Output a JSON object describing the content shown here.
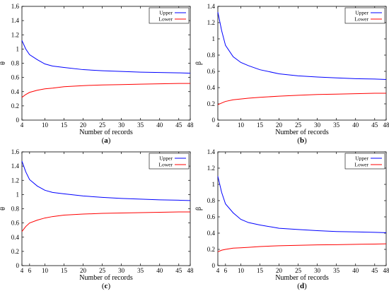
{
  "chart_data": [
    {
      "type": "line",
      "caption": "(a)",
      "xlabel": "Number of records",
      "ylabel": "θ",
      "xlim": [
        4,
        48
      ],
      "ylim": [
        0,
        1.6
      ],
      "xticks": [
        4,
        10,
        15,
        20,
        25,
        30,
        35,
        40,
        45,
        48
      ],
      "yticks": [
        0,
        0.2,
        0.4,
        0.6,
        0.8,
        1,
        1.2,
        1.4,
        1.6
      ],
      "ytick_labels": [
        "0",
        "0.2",
        "0.4",
        "0.6",
        "0.8",
        "1",
        "1.2",
        "1.4",
        "1.6"
      ],
      "legend": "top-right",
      "series": [
        {
          "name": "Upper",
          "color": "#0000ff",
          "x": [
            4,
            5,
            6,
            8,
            10,
            12,
            15,
            20,
            25,
            30,
            35,
            40,
            45,
            48
          ],
          "y": [
            1.12,
            1.0,
            0.92,
            0.85,
            0.79,
            0.76,
            0.74,
            0.71,
            0.695,
            0.685,
            0.675,
            0.67,
            0.665,
            0.66
          ]
        },
        {
          "name": "Lower",
          "color": "#ff0000",
          "x": [
            4,
            5,
            6,
            8,
            10,
            12,
            15,
            20,
            25,
            30,
            35,
            40,
            45,
            48
          ],
          "y": [
            0.32,
            0.36,
            0.39,
            0.42,
            0.44,
            0.45,
            0.47,
            0.485,
            0.495,
            0.5,
            0.505,
            0.51,
            0.515,
            0.515
          ]
        }
      ]
    },
    {
      "type": "line",
      "caption": "(b)",
      "xlabel": "Number of records",
      "ylabel": "β",
      "xlim": [
        4,
        48
      ],
      "ylim": [
        0,
        1.4
      ],
      "xticks": [
        4,
        10,
        15,
        20,
        25,
        30,
        35,
        40,
        45,
        48
      ],
      "yticks": [
        0,
        0.2,
        0.4,
        0.6,
        0.8,
        1,
        1.2,
        1.4
      ],
      "ytick_labels": [
        "0",
        "0.2",
        "0.4",
        "0.6",
        "0.8",
        "1",
        "1.2",
        "1.4"
      ],
      "legend": "top-right",
      "series": [
        {
          "name": "Upper",
          "color": "#0000ff",
          "x": [
            4,
            5,
            6,
            8,
            10,
            12,
            15,
            20,
            25,
            30,
            35,
            40,
            45,
            48
          ],
          "y": [
            1.33,
            1.1,
            0.92,
            0.78,
            0.71,
            0.67,
            0.62,
            0.57,
            0.545,
            0.53,
            0.52,
            0.51,
            0.505,
            0.5
          ]
        },
        {
          "name": "Lower",
          "color": "#ff0000",
          "x": [
            4,
            5,
            6,
            8,
            10,
            12,
            15,
            20,
            25,
            30,
            35,
            40,
            45,
            48
          ],
          "y": [
            0.19,
            0.21,
            0.23,
            0.25,
            0.26,
            0.27,
            0.28,
            0.295,
            0.305,
            0.315,
            0.32,
            0.325,
            0.33,
            0.33
          ]
        }
      ]
    },
    {
      "type": "line",
      "caption": "(c)",
      "xlabel": "Number of records",
      "ylabel": "θ",
      "xlim": [
        4,
        48
      ],
      "ylim": [
        0,
        1.6
      ],
      "xticks": [
        4,
        6,
        10,
        15,
        20,
        25,
        30,
        35,
        40,
        45,
        48
      ],
      "yticks": [
        0,
        0.2,
        0.4,
        0.6,
        0.8,
        1,
        1.2,
        1.4,
        1.6
      ],
      "ytick_labels": [
        "0",
        "0.2",
        "0.4",
        "0.6",
        "0.8",
        "1",
        "1.2",
        "1.4",
        "1.6"
      ],
      "legend": "top-right",
      "series": [
        {
          "name": "Upper",
          "color": "#0000ff",
          "x": [
            4,
            5,
            6,
            8,
            10,
            12,
            15,
            20,
            25,
            30,
            35,
            40,
            45,
            48
          ],
          "y": [
            1.47,
            1.32,
            1.21,
            1.12,
            1.06,
            1.03,
            1.01,
            0.98,
            0.96,
            0.945,
            0.935,
            0.925,
            0.92,
            0.915
          ]
        },
        {
          "name": "Lower",
          "color": "#ff0000",
          "x": [
            4,
            5,
            6,
            8,
            10,
            12,
            15,
            20,
            25,
            30,
            35,
            40,
            45,
            48
          ],
          "y": [
            0.48,
            0.55,
            0.6,
            0.64,
            0.67,
            0.69,
            0.71,
            0.725,
            0.735,
            0.74,
            0.745,
            0.75,
            0.755,
            0.755
          ]
        }
      ]
    },
    {
      "type": "line",
      "caption": "(d)",
      "xlabel": "Number of records",
      "ylabel": "β",
      "xlim": [
        4,
        48
      ],
      "ylim": [
        0,
        1.4
      ],
      "xticks": [
        4,
        6,
        10,
        15,
        20,
        25,
        30,
        35,
        40,
        45,
        48
      ],
      "yticks": [
        0,
        0.2,
        0.4,
        0.6,
        0.8,
        1,
        1.2,
        1.4
      ],
      "ytick_labels": [
        "0",
        "0.2",
        "0.4",
        "0.6",
        "0.8",
        "1",
        "1.2",
        "1.4"
      ],
      "legend": "top-right",
      "series": [
        {
          "name": "Upper",
          "color": "#0000ff",
          "x": [
            4,
            5,
            6,
            8,
            10,
            12,
            15,
            20,
            25,
            30,
            35,
            40,
            45,
            48
          ],
          "y": [
            1.1,
            0.9,
            0.76,
            0.65,
            0.57,
            0.53,
            0.5,
            0.46,
            0.445,
            0.43,
            0.42,
            0.415,
            0.41,
            0.405
          ]
        },
        {
          "name": "Lower",
          "color": "#ff0000",
          "x": [
            4,
            5,
            6,
            8,
            10,
            12,
            15,
            20,
            25,
            30,
            35,
            40,
            45,
            48
          ],
          "y": [
            0.17,
            0.19,
            0.2,
            0.215,
            0.22,
            0.225,
            0.235,
            0.245,
            0.25,
            0.255,
            0.258,
            0.262,
            0.265,
            0.268
          ]
        }
      ]
    }
  ]
}
